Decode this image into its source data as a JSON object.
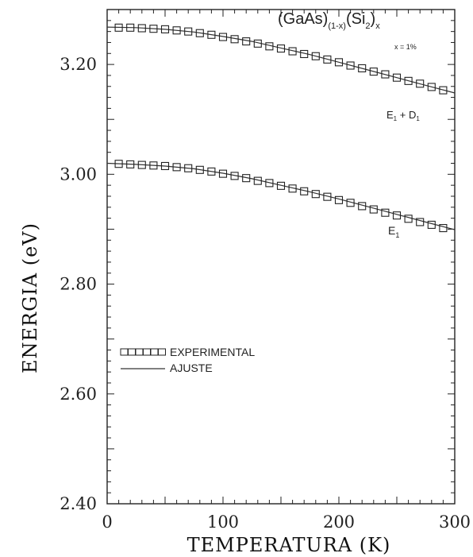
{
  "chart_data": {
    "type": "scatter",
    "title": "",
    "xlabel": "TEMPERATURA  (K)",
    "ylabel": "ENERGIA  (eV)",
    "xlim": [
      0,
      300
    ],
    "ylim": [
      2.4,
      3.3
    ],
    "x_ticks": [
      "0",
      "100",
      "200",
      "300"
    ],
    "y_ticks": [
      "2.40",
      "2.60",
      "2.80",
      "3.00",
      "3.20"
    ],
    "x_tick_values": [
      0,
      100,
      200,
      300
    ],
    "y_tick_values": [
      2.4,
      2.6,
      2.8,
      3.0,
      3.2
    ],
    "legend": {
      "placement": "middle-left",
      "experimental_label": "EXPERIMENTAL",
      "fit_label": "AJUSTE"
    },
    "annotations": {
      "composition_main": "(GaAs)",
      "composition_sub1": "(1-x)",
      "composition_mid": "(Si",
      "composition_sub2": "2",
      "composition_close": ")",
      "composition_sub3": "x",
      "x_value": "x = 1%",
      "e1_label": "E",
      "e1_sub": "1",
      "e1d1_label": "E",
      "e1d1_sub1": "1",
      "e1d1_plus": " + D",
      "e1d1_sub2": "1"
    },
    "series": [
      {
        "id": "E1+D1",
        "x": [
          10,
          20,
          30,
          40,
          50,
          60,
          70,
          80,
          90,
          100,
          110,
          120,
          130,
          140,
          150,
          160,
          170,
          180,
          190,
          200,
          210,
          220,
          230,
          240,
          250,
          260,
          270,
          280,
          290
        ],
        "experimental": [
          3.267,
          3.267,
          3.266,
          3.265,
          3.264,
          3.262,
          3.26,
          3.257,
          3.254,
          3.25,
          3.246,
          3.242,
          3.238,
          3.233,
          3.229,
          3.224,
          3.219,
          3.215,
          3.209,
          3.204,
          3.198,
          3.193,
          3.187,
          3.182,
          3.176,
          3.17,
          3.165,
          3.159,
          3.153
        ],
        "fit_x": [
          0,
          25,
          50,
          75,
          100,
          125,
          150,
          175,
          200,
          225,
          250,
          275,
          300
        ],
        "fit_y": [
          3.268,
          3.267,
          3.264,
          3.259,
          3.251,
          3.242,
          3.23,
          3.218,
          3.204,
          3.19,
          3.176,
          3.162,
          3.148
        ]
      },
      {
        "id": "E1",
        "x": [
          10,
          20,
          30,
          40,
          50,
          60,
          70,
          80,
          90,
          100,
          110,
          120,
          130,
          140,
          150,
          160,
          170,
          180,
          190,
          200,
          210,
          220,
          230,
          240,
          250,
          260,
          270,
          280,
          290
        ],
        "experimental": [
          3.019,
          3.018,
          3.017,
          3.016,
          3.015,
          3.013,
          3.011,
          3.008,
          3.005,
          3.001,
          2.997,
          2.993,
          2.988,
          2.984,
          2.979,
          2.974,
          2.969,
          2.964,
          2.959,
          2.953,
          2.948,
          2.942,
          2.936,
          2.93,
          2.925,
          2.919,
          2.913,
          2.908,
          2.902
        ],
        "fit_x": [
          0,
          25,
          50,
          75,
          100,
          125,
          150,
          175,
          200,
          225,
          250,
          275,
          300
        ],
        "fit_y": [
          3.02,
          3.018,
          3.015,
          3.01,
          3.002,
          2.992,
          2.98,
          2.968,
          2.955,
          2.941,
          2.927,
          2.913,
          2.899
        ]
      }
    ],
    "grid": false
  }
}
